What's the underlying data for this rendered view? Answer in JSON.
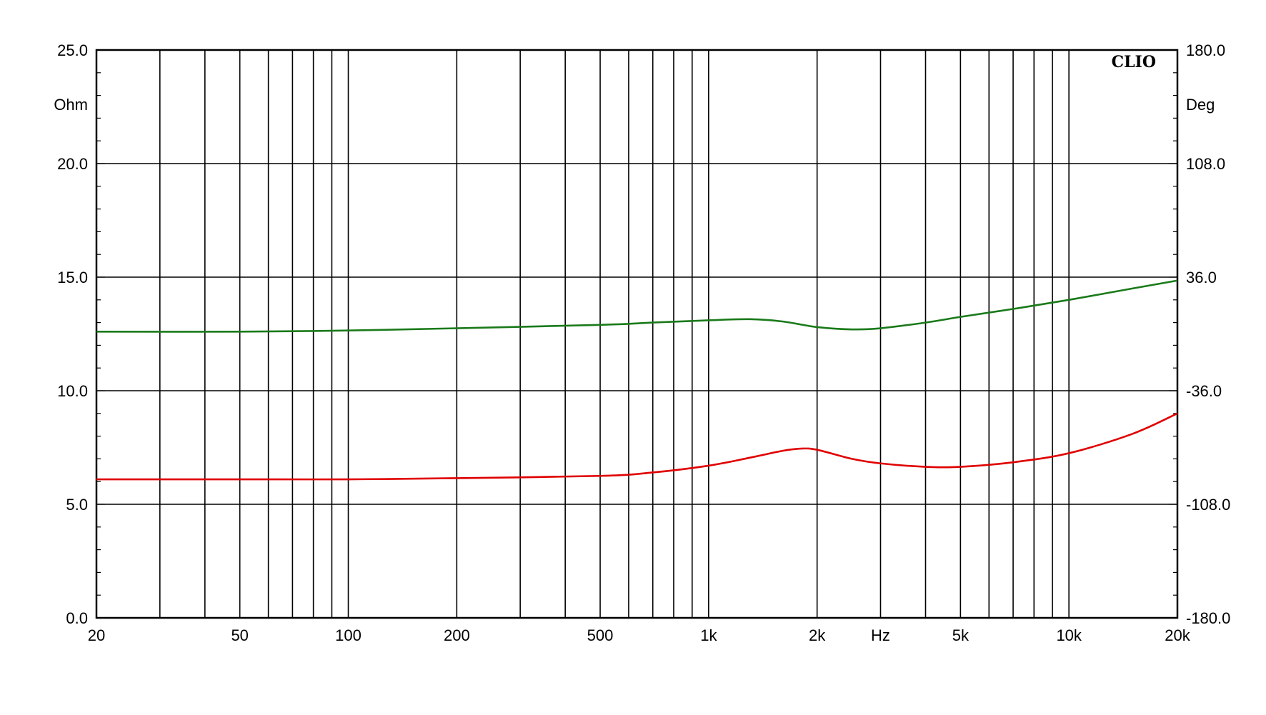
{
  "chart_data": {
    "type": "line",
    "brand": "CLIO",
    "x_scale": "log",
    "xlim": [
      20,
      20000
    ],
    "x_tick_values": [
      20,
      50,
      100,
      200,
      500,
      1000,
      2000,
      5000,
      10000,
      20000
    ],
    "x_tick_labels": [
      "20",
      "50",
      "100",
      "200",
      "500",
      "1k",
      "2k",
      "5k",
      "10k",
      "20k"
    ],
    "x_unit": "Hz",
    "x_unit_position_value": 3000,
    "left_axis": {
      "unit": "Ohm",
      "ylim": [
        0,
        25
      ],
      "tick_values": [
        0,
        5,
        10,
        15,
        20,
        25
      ],
      "tick_labels": [
        "0.0",
        "5.0",
        "10.0",
        "15.0",
        "20.0",
        "25.0"
      ]
    },
    "right_axis": {
      "unit": "Deg",
      "ylim": [
        -180,
        180
      ],
      "tick_values": [
        -180,
        -108,
        -36,
        36,
        108,
        180
      ],
      "tick_labels": [
        "-180.0",
        "-108.0",
        "-36.0",
        "36.0",
        "108.0",
        "180.0"
      ]
    },
    "grid": true,
    "series": [
      {
        "axis": "left",
        "color": "#e00000",
        "x": [
          20,
          50,
          100,
          200,
          500,
          700,
          1000,
          1300,
          1600,
          1800,
          2000,
          2500,
          3000,
          4000,
          5000,
          7000,
          10000,
          15000,
          20000
        ],
        "values": [
          6.1,
          6.1,
          6.1,
          6.15,
          6.25,
          6.4,
          6.7,
          7.05,
          7.35,
          7.45,
          7.4,
          7.0,
          6.8,
          6.65,
          6.65,
          6.85,
          7.25,
          8.1,
          9.0
        ]
      },
      {
        "axis": "left",
        "color": "#1a7a1a",
        "x": [
          20,
          50,
          100,
          200,
          500,
          700,
          1000,
          1300,
          1600,
          2000,
          2500,
          3000,
          4000,
          5000,
          7000,
          10000,
          15000,
          20000
        ],
        "values": [
          12.6,
          12.6,
          12.65,
          12.75,
          12.9,
          13.0,
          13.1,
          13.15,
          13.05,
          12.8,
          12.7,
          12.75,
          13.0,
          13.25,
          13.6,
          14.0,
          14.5,
          14.85
        ]
      }
    ]
  }
}
